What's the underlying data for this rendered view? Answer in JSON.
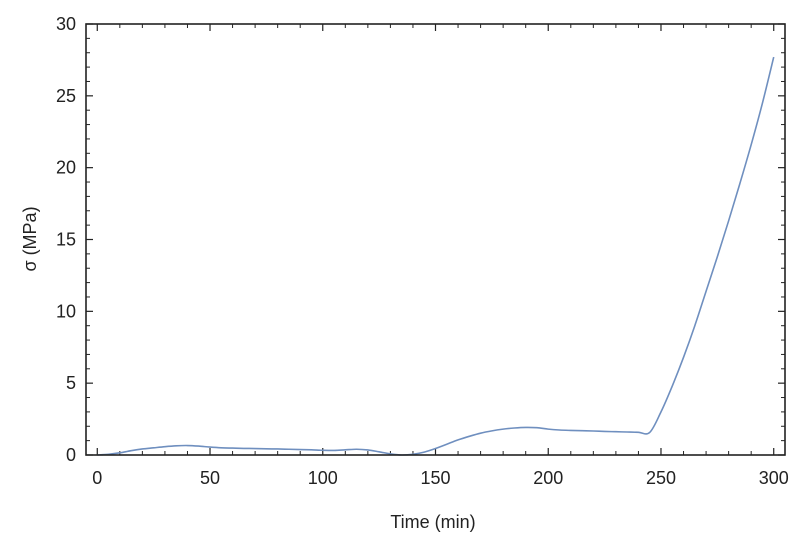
{
  "chart_data": {
    "type": "line",
    "title": "",
    "xlabel": "Time (min)",
    "ylabel": "σ (MPa)",
    "xlim": [
      -5,
      305
    ],
    "ylim": [
      0,
      30
    ],
    "xticks": [
      0,
      50,
      100,
      150,
      200,
      250,
      300
    ],
    "yticks": [
      0,
      5,
      10,
      15,
      20,
      25,
      30
    ],
    "grid": false,
    "series": [
      {
        "name": "",
        "color": "#6f8fbf",
        "x": [
          0,
          5,
          10,
          15,
          20,
          25,
          30,
          35,
          40,
          45,
          50,
          55,
          60,
          65,
          70,
          75,
          80,
          85,
          90,
          95,
          100,
          105,
          110,
          115,
          120,
          125,
          130,
          135,
          140,
          145,
          150,
          155,
          160,
          165,
          170,
          175,
          180,
          185,
          190,
          195,
          200,
          205,
          210,
          215,
          220,
          225,
          230,
          235,
          240,
          245,
          250,
          255,
          260,
          265,
          270,
          275,
          280,
          285,
          290,
          295,
          300
        ],
        "y": [
          0.0,
          0.05,
          0.15,
          0.3,
          0.42,
          0.5,
          0.58,
          0.64,
          0.66,
          0.62,
          0.55,
          0.5,
          0.48,
          0.46,
          0.45,
          0.43,
          0.42,
          0.4,
          0.38,
          0.36,
          0.33,
          0.32,
          0.36,
          0.4,
          0.35,
          0.22,
          0.08,
          0.0,
          0.05,
          0.2,
          0.45,
          0.75,
          1.05,
          1.3,
          1.52,
          1.68,
          1.8,
          1.88,
          1.92,
          1.9,
          1.8,
          1.74,
          1.71,
          1.69,
          1.67,
          1.64,
          1.62,
          1.6,
          1.58,
          1.57,
          3.0,
          4.8,
          6.8,
          9.0,
          11.4,
          13.8,
          16.3,
          18.9,
          21.6,
          24.5,
          27.7
        ]
      }
    ]
  }
}
